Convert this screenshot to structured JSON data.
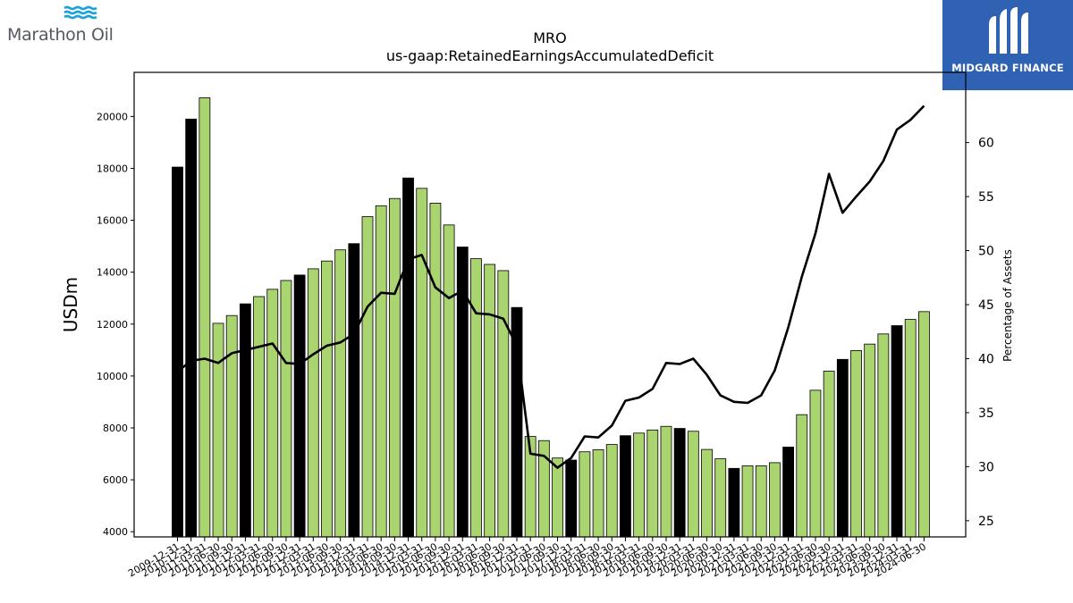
{
  "logos": {
    "left": {
      "text": "Marathon Oil",
      "icon": "marathon-wave-icon",
      "color": "#1da1dc"
    },
    "right": {
      "text": "MIDGARD FINANCE",
      "icon": "midgard-m-icon",
      "background": "#2f62b3"
    }
  },
  "chart_data": {
    "type": "bar",
    "title": "MRO",
    "subtitle": "us-gaap:RetainedEarningsAccumulatedDeficit",
    "ylabel": "USDm",
    "y2label": "Percentage of Assets",
    "ylim": [
      3800,
      21700
    ],
    "y2lim": [
      23.5,
      66.5
    ],
    "yticks": [
      4000,
      6000,
      8000,
      10000,
      12000,
      14000,
      16000,
      18000,
      20000
    ],
    "y2ticks": [
      25,
      30,
      35,
      40,
      45,
      50,
      55,
      60
    ],
    "categories": [
      "2009-12-31",
      "2010-12-31",
      "2011-03-31",
      "2011-06-30",
      "2011-09-30",
      "2011-12-31",
      "2012-03-31",
      "2012-06-30",
      "2012-09-30",
      "2012-12-31",
      "2013-03-31",
      "2013-06-30",
      "2013-09-30",
      "2013-12-31",
      "2014-03-31",
      "2014-06-30",
      "2014-09-30",
      "2014-12-31",
      "2015-03-31",
      "2015-06-30",
      "2015-09-30",
      "2015-12-31",
      "2016-03-31",
      "2016-06-30",
      "2016-09-30",
      "2016-12-31",
      "2017-03-31",
      "2017-06-30",
      "2017-09-30",
      "2017-12-31",
      "2018-03-31",
      "2018-06-30",
      "2018-09-30",
      "2018-12-31",
      "2019-03-31",
      "2019-06-30",
      "2019-09-30",
      "2019-12-31",
      "2020-03-31",
      "2020-06-30",
      "2020-09-30",
      "2020-12-31",
      "2021-03-31",
      "2021-06-30",
      "2021-09-30",
      "2021-12-31",
      "2022-03-31",
      "2022-06-30",
      "2022-09-30",
      "2022-12-31",
      "2023-03-31",
      "2023-06-30",
      "2023-09-30",
      "2023-12-31",
      "2024-03-31",
      "2024-06-30"
    ],
    "series": [
      {
        "type": "bar",
        "values": [
          18050,
          19900,
          20720,
          12030,
          12330,
          12780,
          13060,
          13340,
          13680,
          13890,
          14130,
          14430,
          14860,
          15100,
          16140,
          16560,
          16840,
          17630,
          17230,
          16660,
          15820,
          14970,
          14520,
          14300,
          14060,
          12640,
          7670,
          7510,
          6840,
          6760,
          7080,
          7160,
          7360,
          7700,
          7800,
          7920,
          8060,
          7980,
          7870,
          7170,
          6810,
          6440,
          6540,
          6540,
          6660,
          7260,
          8510,
          9450,
          10190,
          10640,
          10980,
          11230,
          11620,
          11940,
          12180,
          12480
        ],
        "colors": [
          "#000000",
          "#000000",
          "#a9d46f",
          "#a9d46f",
          "#a9d46f",
          "#000000",
          "#a9d46f",
          "#a9d46f",
          "#a9d46f",
          "#000000",
          "#a9d46f",
          "#a9d46f",
          "#a9d46f",
          "#000000",
          "#a9d46f",
          "#a9d46f",
          "#a9d46f",
          "#000000",
          "#a9d46f",
          "#a9d46f",
          "#a9d46f",
          "#000000",
          "#a9d46f",
          "#a9d46f",
          "#a9d46f",
          "#000000",
          "#a9d46f",
          "#a9d46f",
          "#a9d46f",
          "#000000",
          "#a9d46f",
          "#a9d46f",
          "#a9d46f",
          "#000000",
          "#a9d46f",
          "#a9d46f",
          "#a9d46f",
          "#000000",
          "#a9d46f",
          "#a9d46f",
          "#a9d46f",
          "#000000",
          "#a9d46f",
          "#a9d46f",
          "#a9d46f",
          "#000000",
          "#a9d46f",
          "#a9d46f",
          "#a9d46f",
          "#000000",
          "#a9d46f",
          "#a9d46f",
          "#a9d46f",
          "#000000",
          "#a9d46f",
          "#a9d46f"
        ]
      },
      {
        "type": "line",
        "axis": "right",
        "color": "#000000",
        "values": [
          38.8,
          39.8,
          40.0,
          39.6,
          40.5,
          40.8,
          41.1,
          41.4,
          39.6,
          39.5,
          40.4,
          41.2,
          41.5,
          42.3,
          44.8,
          46.1,
          46.0,
          49.2,
          49.6,
          46.6,
          45.6,
          46.3,
          44.2,
          44.1,
          43.7,
          41.2,
          31.2,
          31.0,
          29.9,
          30.8,
          32.8,
          32.7,
          33.8,
          36.1,
          36.4,
          37.2,
          39.6,
          39.5,
          40.0,
          38.5,
          36.6,
          36.0,
          35.9,
          36.6,
          38.9,
          42.9,
          47.6,
          51.6,
          57.1,
          53.5,
          55.0,
          56.4,
          58.3,
          61.2,
          62.1,
          63.4
        ]
      }
    ]
  }
}
